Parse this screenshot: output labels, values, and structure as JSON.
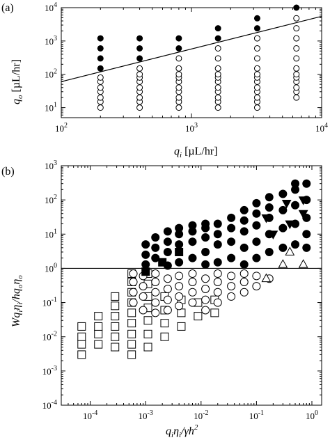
{
  "chart_data": [
    {
      "type": "scatter",
      "panel_label": "(a)",
      "xlabel": "q_i [µL/hr]",
      "ylabel": "q_o [µL/hr]",
      "xscale": "log",
      "yscale": "log",
      "xlim": [
        100,
        10000
      ],
      "ylim": [
        5,
        10000
      ],
      "xticks": [
        "10^2",
        "10^3",
        "10^4"
      ],
      "yticks": [
        "10^1",
        "10^2",
        "10^3",
        "10^4"
      ],
      "series": [
        {
          "marker": "circle-filled",
          "points": [
            [
              200,
              150
            ],
            [
              200,
              300
            ],
            [
              200,
              600
            ],
            [
              200,
              1200
            ],
            [
              400,
              300
            ],
            [
              400,
              600
            ],
            [
              400,
              1200
            ],
            [
              800,
              600
            ],
            [
              800,
              1200
            ],
            [
              1600,
              1200
            ],
            [
              1600,
              2400
            ],
            [
              3200,
              2400
            ],
            [
              3200,
              4800
            ],
            [
              6400,
              10000
            ]
          ]
        },
        {
          "marker": "circle-open",
          "points": [
            [
              200,
              10
            ],
            [
              200,
              15
            ],
            [
              200,
              20
            ],
            [
              200,
              30
            ],
            [
              200,
              40
            ],
            [
              200,
              60
            ],
            [
              200,
              80
            ],
            [
              400,
              10
            ],
            [
              400,
              15
            ],
            [
              400,
              20
            ],
            [
              400,
              30
            ],
            [
              400,
              40
            ],
            [
              400,
              60
            ],
            [
              400,
              80
            ],
            [
              400,
              100
            ],
            [
              400,
              150
            ],
            [
              800,
              10
            ],
            [
              800,
              15
            ],
            [
              800,
              20
            ],
            [
              800,
              30
            ],
            [
              800,
              40
            ],
            [
              800,
              60
            ],
            [
              800,
              80
            ],
            [
              800,
              100
            ],
            [
              800,
              150
            ],
            [
              800,
              300
            ],
            [
              1600,
              10
            ],
            [
              1600,
              15
            ],
            [
              1600,
              20
            ],
            [
              1600,
              30
            ],
            [
              1600,
              40
            ],
            [
              1600,
              60
            ],
            [
              1600,
              80
            ],
            [
              1600,
              100
            ],
            [
              1600,
              150
            ],
            [
              1600,
              300
            ],
            [
              1600,
              600
            ],
            [
              3200,
              10
            ],
            [
              3200,
              15
            ],
            [
              3200,
              20
            ],
            [
              3200,
              30
            ],
            [
              3200,
              40
            ],
            [
              3200,
              60
            ],
            [
              3200,
              80
            ],
            [
              3200,
              100
            ],
            [
              3200,
              150
            ],
            [
              3200,
              300
            ],
            [
              3200,
              600
            ],
            [
              3200,
              1200
            ],
            [
              6400,
              20
            ],
            [
              6400,
              30
            ],
            [
              6400,
              40
            ],
            [
              6400,
              60
            ],
            [
              6400,
              80
            ],
            [
              6400,
              100
            ],
            [
              6400,
              150
            ],
            [
              6400,
              300
            ],
            [
              6400,
              600
            ],
            [
              6400,
              1200
            ],
            [
              6400,
              2400
            ],
            [
              6400,
              4800
            ]
          ]
        }
      ],
      "boundary_line": {
        "x": [
          100,
          10000
        ],
        "y": [
          60,
          5500
        ]
      }
    },
    {
      "type": "scatter",
      "panel_label": "(b)",
      "xlabel": "q_i η_i / γ h^2",
      "ylabel": "W q_i η_i / h q_o η_o",
      "xscale": "log",
      "yscale": "log",
      "xlim": [
        3e-05,
        1.5
      ],
      "ylim": [
        0.0001,
        1000
      ],
      "xticks": [
        "10^-4",
        "10^-3",
        "10^-2",
        "10^-1",
        "10^0"
      ],
      "yticks": [
        "10^-4",
        "10^-3",
        "10^-2",
        "10^-1",
        "10^0",
        "10^1",
        "10^2",
        "10^3"
      ],
      "reference_line_y": 1,
      "series": [
        {
          "marker": "square-open",
          "points": [
            [
              7e-05,
              0.003
            ],
            [
              7e-05,
              0.006
            ],
            [
              7e-05,
              0.01
            ],
            [
              7e-05,
              0.02
            ],
            [
              0.00014,
              0.006
            ],
            [
              0.00014,
              0.012
            ],
            [
              0.00014,
              0.02
            ],
            [
              0.00014,
              0.04
            ],
            [
              0.00028,
              0.005
            ],
            [
              0.00028,
              0.01
            ],
            [
              0.00028,
              0.02
            ],
            [
              0.00028,
              0.04
            ],
            [
              0.00028,
              0.08
            ],
            [
              0.00028,
              0.15
            ],
            [
              0.00056,
              0.003
            ],
            [
              0.00056,
              0.006
            ],
            [
              0.00056,
              0.012
            ],
            [
              0.00056,
              0.025
            ],
            [
              0.00056,
              0.05
            ],
            [
              0.00056,
              0.1
            ],
            [
              0.00056,
              0.2
            ],
            [
              0.00056,
              0.4
            ],
            [
              0.00056,
              0.7
            ],
            [
              0.0011,
              0.005
            ],
            [
              0.0011,
              0.012
            ],
            [
              0.0011,
              0.03
            ],
            [
              0.0011,
              0.07
            ],
            [
              0.0011,
              0.15
            ],
            [
              0.0011,
              0.35
            ],
            [
              0.0011,
              0.7
            ],
            [
              0.0022,
              0.01
            ],
            [
              0.0022,
              0.025
            ],
            [
              0.0022,
              0.06
            ],
            [
              0.0022,
              0.15
            ],
            [
              0.0044,
              0.02
            ],
            [
              0.0044,
              0.05
            ],
            [
              0.0044,
              0.12
            ],
            [
              0.0088,
              0.04
            ],
            [
              0.0088,
              0.1
            ],
            [
              0.0176,
              0.05
            ],
            [
              0.0176,
              0.12
            ]
          ]
        },
        {
          "marker": "circle-open",
          "points": [
            [
              0.0006,
              0.1
            ],
            [
              0.0006,
              0.2
            ],
            [
              0.0006,
              0.4
            ],
            [
              0.0006,
              0.7
            ],
            [
              0.0009,
              0.06
            ],
            [
              0.0009,
              0.15
            ],
            [
              0.0009,
              0.3
            ],
            [
              0.0009,
              0.6
            ],
            [
              0.0015,
              0.05
            ],
            [
              0.0015,
              0.1
            ],
            [
              0.0015,
              0.2
            ],
            [
              0.0015,
              0.4
            ],
            [
              0.0015,
              0.7
            ],
            [
              0.0025,
              0.06
            ],
            [
              0.0025,
              0.12
            ],
            [
              0.0025,
              0.25
            ],
            [
              0.0025,
              0.5
            ],
            [
              0.004,
              0.08
            ],
            [
              0.004,
              0.15
            ],
            [
              0.004,
              0.3
            ],
            [
              0.004,
              0.6
            ],
            [
              0.007,
              0.1
            ],
            [
              0.007,
              0.2
            ],
            [
              0.007,
              0.4
            ],
            [
              0.007,
              0.7
            ],
            [
              0.012,
              0.06
            ],
            [
              0.012,
              0.12
            ],
            [
              0.012,
              0.25
            ],
            [
              0.012,
              0.5
            ],
            [
              0.02,
              0.1
            ],
            [
              0.02,
              0.2
            ],
            [
              0.02,
              0.4
            ],
            [
              0.02,
              0.7
            ],
            [
              0.035,
              0.15
            ],
            [
              0.035,
              0.3
            ],
            [
              0.035,
              0.6
            ],
            [
              0.06,
              0.2
            ],
            [
              0.06,
              0.4
            ],
            [
              0.06,
              0.7
            ],
            [
              0.1,
              0.3
            ],
            [
              0.1,
              0.6
            ],
            [
              0.17,
              0.5
            ]
          ]
        },
        {
          "marker": "triangle-up-open",
          "points": [
            [
              0.15,
              0.5
            ],
            [
              0.3,
              1.3
            ],
            [
              0.7,
              1.3
            ],
            [
              0.4,
              3
            ]
          ]
        },
        {
          "marker": "square-filled",
          "points": [
            [
              0.001,
              0.8
            ],
            [
              0.002,
              1.5
            ],
            [
              0.004,
              3
            ]
          ]
        },
        {
          "marker": "triangle-down-filled",
          "points": [
            [
              0.2,
              10
            ],
            [
              0.4,
              20
            ],
            [
              0.7,
              40
            ],
            [
              0.35,
              80
            ],
            [
              0.7,
              100
            ],
            [
              0.15,
              30
            ]
          ]
        },
        {
          "marker": "circle-filled",
          "points": [
            [
              0.001,
              1.3
            ],
            [
              0.001,
              2.5
            ],
            [
              0.001,
              5
            ],
            [
              0.0015,
              2
            ],
            [
              0.0015,
              4
            ],
            [
              0.0015,
              8
            ],
            [
              0.0025,
              1.2
            ],
            [
              0.0025,
              3
            ],
            [
              0.0025,
              6
            ],
            [
              0.0025,
              12
            ],
            [
              0.004,
              1.5
            ],
            [
              0.004,
              5
            ],
            [
              0.004,
              10
            ],
            [
              0.004,
              15
            ],
            [
              0.007,
              2
            ],
            [
              0.007,
              6
            ],
            [
              0.007,
              12
            ],
            [
              0.007,
              18
            ],
            [
              0.012,
              1.3
            ],
            [
              0.012,
              3
            ],
            [
              0.012,
              8
            ],
            [
              0.012,
              15
            ],
            [
              0.012,
              20
            ],
            [
              0.02,
              1.5
            ],
            [
              0.02,
              5
            ],
            [
              0.02,
              10
            ],
            [
              0.02,
              20
            ],
            [
              0.035,
              2
            ],
            [
              0.035,
              6
            ],
            [
              0.035,
              15
            ],
            [
              0.035,
              30
            ],
            [
              0.06,
              1.3
            ],
            [
              0.06,
              4
            ],
            [
              0.06,
              12
            ],
            [
              0.06,
              25
            ],
            [
              0.06,
              50
            ],
            [
              0.1,
              2
            ],
            [
              0.1,
              6
            ],
            [
              0.1,
              18
            ],
            [
              0.1,
              40
            ],
            [
              0.1,
              80
            ],
            [
              0.17,
              3
            ],
            [
              0.17,
              10
            ],
            [
              0.17,
              30
            ],
            [
              0.17,
              60
            ],
            [
              0.17,
              120
            ],
            [
              0.3,
              4
            ],
            [
              0.3,
              15
            ],
            [
              0.3,
              50
            ],
            [
              0.3,
              150
            ],
            [
              0.5,
              5
            ],
            [
              0.5,
              20
            ],
            [
              0.5,
              70
            ],
            [
              0.5,
              200
            ],
            [
              0.5,
              300
            ],
            [
              0.8,
              4
            ],
            [
              0.8,
              10
            ],
            [
              0.8,
              30
            ],
            [
              0.8,
              100
            ],
            [
              0.8,
              300
            ]
          ]
        }
      ]
    }
  ]
}
